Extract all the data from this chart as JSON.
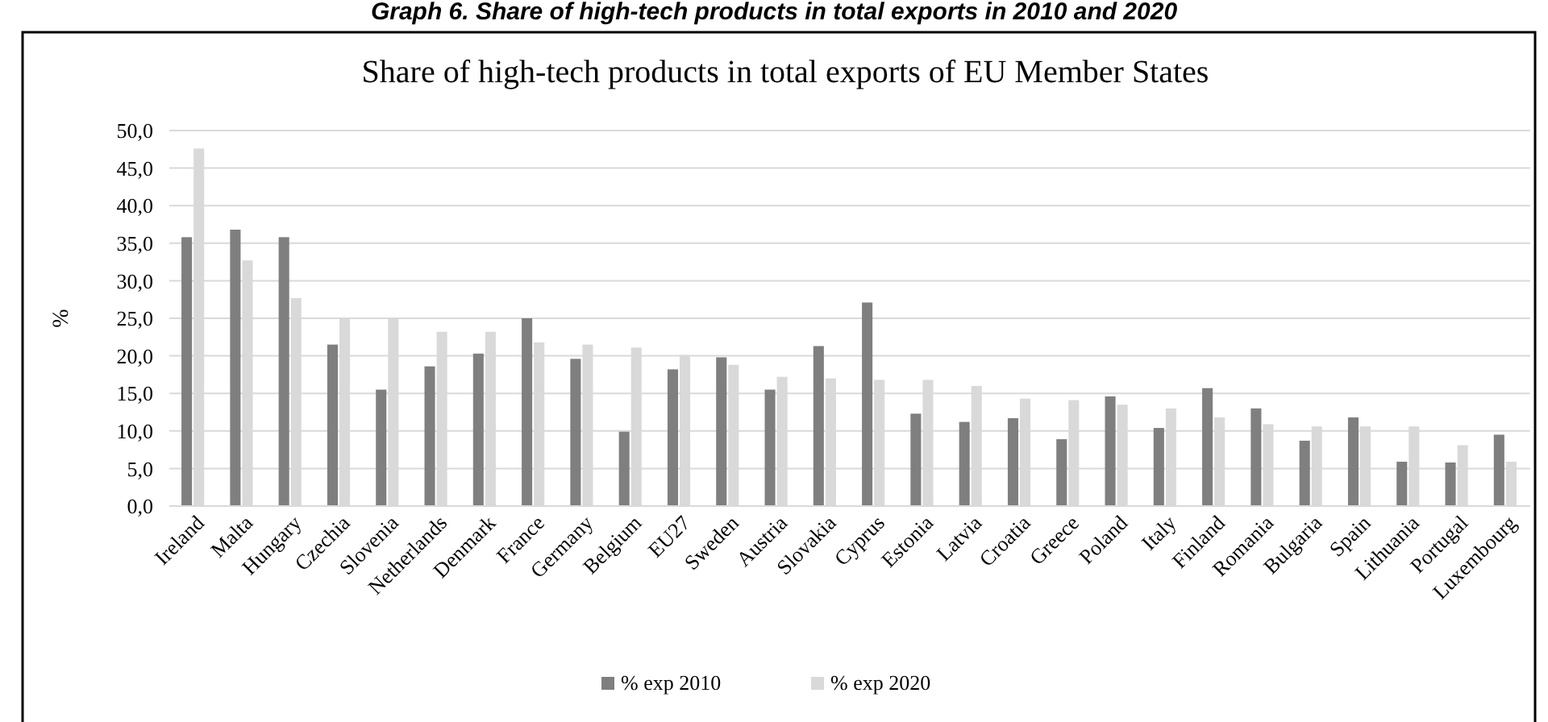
{
  "chart_data": {
    "type": "bar",
    "title": "Share of high-tech products in total exports of EU Member States",
    "annotations": [
      "Graph 6. Share of high-tech products in total exports in 2010 and 2020"
    ],
    "ylabel": "%",
    "categories": [
      "Ireland",
      "Malta",
      "Hungary",
      "Czechia",
      "Slovenia",
      "Netherlands",
      "Denmark",
      "France",
      "Germany",
      "Belgium",
      "EU27",
      "Sweden",
      "Austria",
      "Slovakia",
      "Cyprus",
      "Estonia",
      "Latvia",
      "Croatia",
      "Greece",
      "Poland",
      "Italy",
      "Finland",
      "Romania",
      "Bulgaria",
      "Spain",
      "Lithuania",
      "Portugal",
      "Luxembourg"
    ],
    "series": [
      {
        "name": "% exp 2010",
        "color": "#7f7f7f",
        "values": [
          35.8,
          36.8,
          35.8,
          21.5,
          15.5,
          18.6,
          20.3,
          25.0,
          19.6,
          9.9,
          18.2,
          19.8,
          15.5,
          21.3,
          27.1,
          12.3,
          11.2,
          11.7,
          8.9,
          14.6,
          10.4,
          15.7,
          13.0,
          8.7,
          11.8,
          5.9,
          5.8,
          9.5
        ]
      },
      {
        "name": "% exp 2020",
        "color": "#d9d9d9",
        "values": [
          47.6,
          32.7,
          27.7,
          25.0,
          25.0,
          23.2,
          23.2,
          21.8,
          21.5,
          21.1,
          20.1,
          18.8,
          17.2,
          17.0,
          16.8,
          16.8,
          16.0,
          14.3,
          14.1,
          13.5,
          13.0,
          11.8,
          10.9,
          10.6,
          10.6,
          10.6,
          8.1,
          5.9
        ]
      }
    ],
    "ylim": [
      0,
      50
    ],
    "yticks": [
      {
        "value": 0,
        "label": "0,0"
      },
      {
        "value": 5,
        "label": "5,0"
      },
      {
        "value": 10,
        "label": "10,0"
      },
      {
        "value": 15,
        "label": "15,0"
      },
      {
        "value": 20,
        "label": "20,0"
      },
      {
        "value": 25,
        "label": "25,0"
      },
      {
        "value": 30,
        "label": "30,0"
      },
      {
        "value": 35,
        "label": "35,0"
      },
      {
        "value": 40,
        "label": "40,0"
      },
      {
        "value": 45,
        "label": "45,0"
      },
      {
        "value": 50,
        "label": "50,0"
      }
    ],
    "grid": "y",
    "legend": "bottom"
  }
}
